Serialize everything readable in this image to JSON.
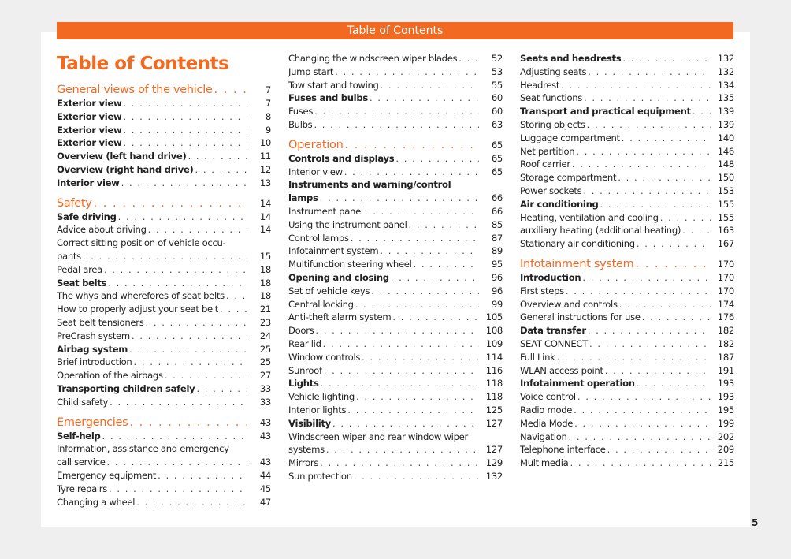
{
  "banner": "Table of Contents",
  "title": "Table of Contents",
  "page_number": "5",
  "columns": [
    [
      {
        "s": "h",
        "t": "General views of the vehicle",
        "p": "7"
      },
      {
        "s": "b",
        "t": "Exterior view",
        "p": "7"
      },
      {
        "s": "b",
        "t": "Exterior view",
        "p": "8"
      },
      {
        "s": "b",
        "t": "Exterior view",
        "p": "9"
      },
      {
        "s": "b",
        "t": "Exterior view",
        "p": "10"
      },
      {
        "s": "b",
        "t": "Overview (left hand drive)",
        "p": "11"
      },
      {
        "s": "b",
        "t": "Overview (right hand drive)",
        "p": "12"
      },
      {
        "s": "b",
        "t": "Interior view",
        "p": "13"
      },
      {
        "s": "h",
        "t": "Safety",
        "p": "14"
      },
      {
        "s": "b",
        "t": "Safe driving",
        "p": "14"
      },
      {
        "s": "n",
        "t": "Advice about driving",
        "p": "14"
      },
      {
        "s": "n",
        "t": "Correct sitting position of vehicle occu-",
        "w": true
      },
      {
        "s": "n",
        "t": "pants",
        "p": "15"
      },
      {
        "s": "n",
        "t": "Pedal area",
        "p": "18"
      },
      {
        "s": "b",
        "t": "Seat belts",
        "p": "18"
      },
      {
        "s": "n",
        "t": "The whys and wherefores of seat belts",
        "p": "18"
      },
      {
        "s": "n",
        "t": "How to properly adjust your seat belt",
        "p": "21"
      },
      {
        "s": "n",
        "t": "Seat belt tensioners",
        "p": "23"
      },
      {
        "s": "n",
        "t": "PreCrash system",
        "p": "24"
      },
      {
        "s": "b",
        "t": "Airbag system",
        "p": "25"
      },
      {
        "s": "n",
        "t": "Brief introduction",
        "p": "25"
      },
      {
        "s": "n",
        "t": "Operation of the airbags",
        "p": "27"
      },
      {
        "s": "b",
        "t": "Transporting children safely",
        "p": "33"
      },
      {
        "s": "n",
        "t": "Child safety",
        "p": "33"
      },
      {
        "s": "h",
        "t": "Emergencies",
        "p": "43"
      },
      {
        "s": "b",
        "t": "Self-help",
        "p": "43"
      },
      {
        "s": "n",
        "t": "Information, assistance and emergency",
        "w": true
      },
      {
        "s": "n",
        "t": "call service",
        "p": "43"
      },
      {
        "s": "n",
        "t": "Emergency equipment",
        "p": "44"
      },
      {
        "s": "n",
        "t": "Tyre repairs",
        "p": "45"
      },
      {
        "s": "n",
        "t": "Changing a wheel",
        "p": "47"
      }
    ],
    [
      {
        "s": "n",
        "t": "Changing the windscreen wiper blades",
        "p": "52"
      },
      {
        "s": "n",
        "t": "Jump start",
        "p": "53"
      },
      {
        "s": "n",
        "t": "Tow start and towing",
        "p": "55"
      },
      {
        "s": "b",
        "t": "Fuses and bulbs",
        "p": "60"
      },
      {
        "s": "n",
        "t": "Fuses",
        "p": "60"
      },
      {
        "s": "n",
        "t": "Bulbs",
        "p": "63"
      },
      {
        "s": "h",
        "t": "Operation",
        "p": "65"
      },
      {
        "s": "b",
        "t": "Controls and displays",
        "p": "65"
      },
      {
        "s": "n",
        "t": "Interior view",
        "p": "65"
      },
      {
        "s": "b",
        "t": "Instruments and warning/control",
        "w": true
      },
      {
        "s": "b",
        "t": "lamps",
        "p": "66"
      },
      {
        "s": "n",
        "t": "Instrument panel",
        "p": "66"
      },
      {
        "s": "n",
        "t": "Using the instrument panel",
        "p": "85"
      },
      {
        "s": "n",
        "t": "Control lamps",
        "p": "87"
      },
      {
        "s": "n",
        "t": "Infotainment system",
        "p": "89"
      },
      {
        "s": "n",
        "t": "Multifunction steering wheel",
        "p": "95"
      },
      {
        "s": "b",
        "t": "Opening and closing",
        "p": "96"
      },
      {
        "s": "n",
        "t": "Set of vehicle keys",
        "p": "96"
      },
      {
        "s": "n",
        "t": "Central locking",
        "p": "99"
      },
      {
        "s": "n",
        "t": "Anti-theft alarm system",
        "p": "105"
      },
      {
        "s": "n",
        "t": "Doors",
        "p": "108"
      },
      {
        "s": "n",
        "t": "Rear lid",
        "p": "109"
      },
      {
        "s": "n",
        "t": "Window controls",
        "p": "114"
      },
      {
        "s": "n",
        "t": "Sunroof",
        "p": "116"
      },
      {
        "s": "b",
        "t": "Lights",
        "p": "118"
      },
      {
        "s": "n",
        "t": "Vehicle lighting",
        "p": "118"
      },
      {
        "s": "n",
        "t": "Interior lights",
        "p": "125"
      },
      {
        "s": "b",
        "t": "Visibility",
        "p": "127"
      },
      {
        "s": "n",
        "t": "Windscreen wiper and rear window wiper",
        "w": true
      },
      {
        "s": "n",
        "t": "systems",
        "p": "127"
      },
      {
        "s": "n",
        "t": "Mirrors",
        "p": "129"
      },
      {
        "s": "n",
        "t": "Sun protection",
        "p": "132"
      }
    ],
    [
      {
        "s": "b",
        "t": "Seats and headrests",
        "p": "132"
      },
      {
        "s": "n",
        "t": "Adjusting seats",
        "p": "132"
      },
      {
        "s": "n",
        "t": "Headrest",
        "p": "134"
      },
      {
        "s": "n",
        "t": "Seat functions",
        "p": "135"
      },
      {
        "s": "b",
        "t": "Transport and practical equipment",
        "p": "139"
      },
      {
        "s": "n",
        "t": "Storing objects",
        "p": "139"
      },
      {
        "s": "n",
        "t": "Luggage compartment",
        "p": "140"
      },
      {
        "s": "n",
        "t": "Net partition",
        "p": "146"
      },
      {
        "s": "n",
        "t": "Roof carrier",
        "p": "148"
      },
      {
        "s": "n",
        "t": "Storage compartment",
        "p": "150"
      },
      {
        "s": "n",
        "t": "Power sockets",
        "p": "153"
      },
      {
        "s": "b",
        "t": "Air conditioning",
        "p": "155"
      },
      {
        "s": "n",
        "t": "Heating, ventilation and cooling",
        "p": "155"
      },
      {
        "s": "n",
        "t": "auxiliary heating (additional heating)",
        "p": "163"
      },
      {
        "s": "n",
        "t": "Stationary air conditioning",
        "p": "167"
      },
      {
        "s": "h",
        "t": "Infotainment system",
        "p": "170"
      },
      {
        "s": "b",
        "t": "Introduction",
        "p": "170"
      },
      {
        "s": "n",
        "t": "First steps",
        "p": "170"
      },
      {
        "s": "n",
        "t": "Overview and controls",
        "p": "174"
      },
      {
        "s": "n",
        "t": "General instructions for use",
        "p": "176"
      },
      {
        "s": "b",
        "t": "Data transfer",
        "p": "182"
      },
      {
        "s": "n",
        "t": "SEAT CONNECT",
        "p": "182"
      },
      {
        "s": "n",
        "t": "Full Link",
        "p": "187"
      },
      {
        "s": "n",
        "t": "WLAN access point",
        "p": "191"
      },
      {
        "s": "b",
        "t": "Infotainment operation",
        "p": "193"
      },
      {
        "s": "n",
        "t": "Voice control",
        "p": "193"
      },
      {
        "s": "n",
        "t": "Radio mode",
        "p": "195"
      },
      {
        "s": "n",
        "t": "Media Mode",
        "p": "199"
      },
      {
        "s": "n",
        "t": "Navigation",
        "p": "202"
      },
      {
        "s": "n",
        "t": "Telephone interface",
        "p": "209"
      },
      {
        "s": "n",
        "t": "Multimedia",
        "p": "215"
      }
    ]
  ]
}
